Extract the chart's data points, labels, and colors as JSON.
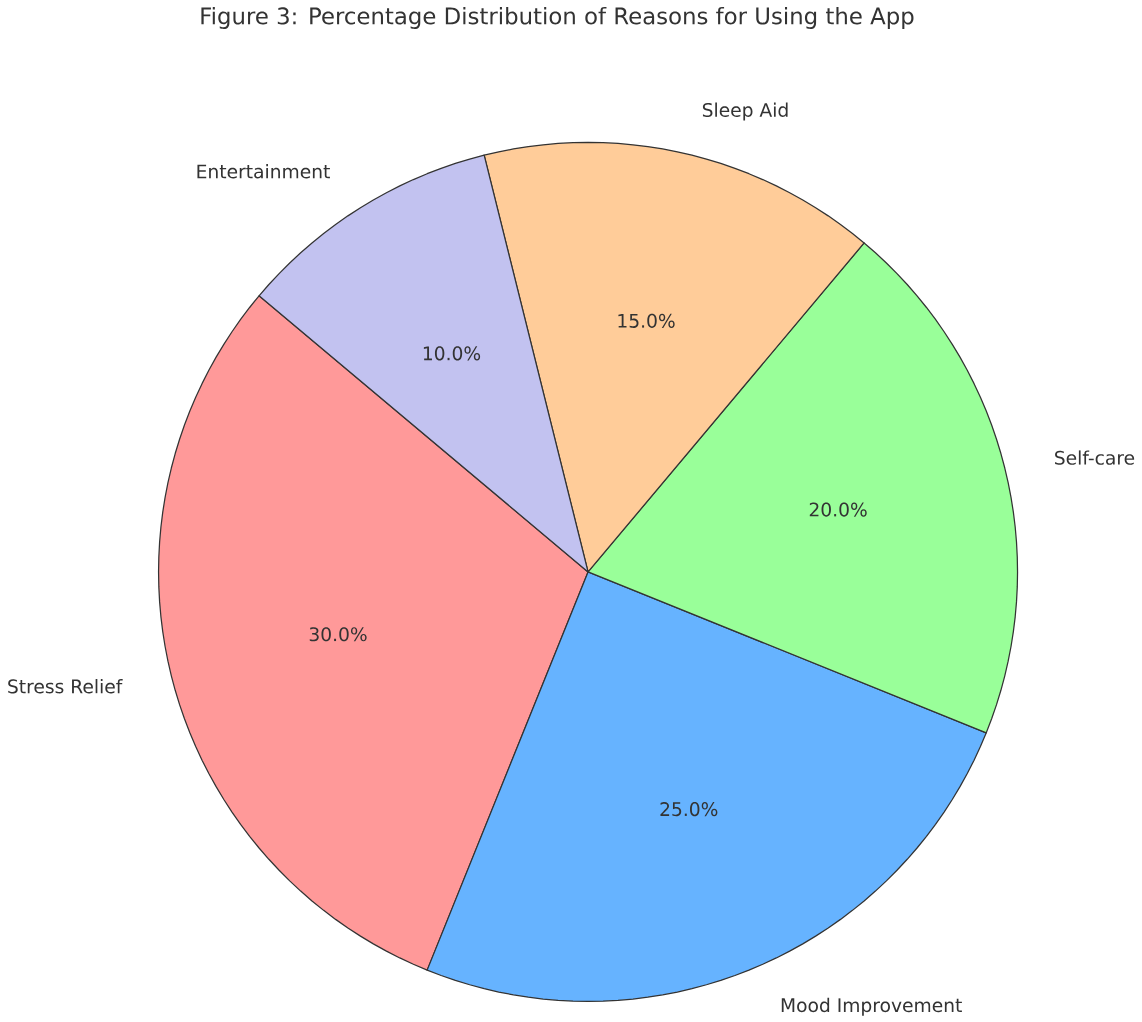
{
  "chart_data": {
    "type": "pie",
    "title": "Figure 3: Percentage Distribution of Reasons for Using the App",
    "categories": [
      "Stress Relief",
      "Mood Improvement",
      "Self-care",
      "Sleep Aid",
      "Entertainment"
    ],
    "values": [
      30,
      25,
      20,
      15,
      10
    ],
    "colors": [
      "#ff9999",
      "#66b3ff",
      "#99ff99",
      "#ffcc99",
      "#c2c2f0"
    ],
    "value_labels": [
      "30.0%",
      "25.0%",
      "20.0%",
      "15.0%",
      "10.0%"
    ]
  }
}
